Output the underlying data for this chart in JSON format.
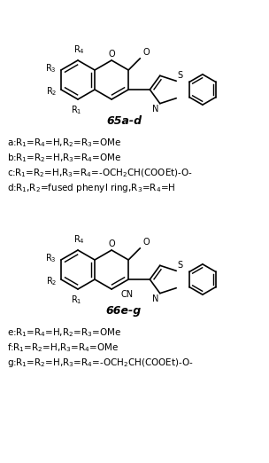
{
  "background_color": "#ffffff",
  "fig_width": 3.04,
  "fig_height": 5.22,
  "dpi": 100,
  "compound1_label": "65a-d",
  "compound2_label": "66e-g",
  "lines_65": [
    "a:R$_1$=R$_4$=H,R$_2$=R$_3$=OMe",
    "b:R$_1$=R$_2$=H,R$_3$=R$_4$=OMe",
    "c:R$_1$=R$_2$=H,R$_3$=R$_4$=-OCH$_2$CH(COOEt)-O-",
    "d:R$_1$,R$_2$=fused phenyl ring,R$_3$=R$_4$=H"
  ],
  "lines_66": [
    "e:R$_1$=R$_4$=H,R$_2$=R$_3$=OMe",
    "f:R$_1$=R$_2$=H,R$_3$=R$_4$=OMe",
    "g:R$_1$=R$_2$=H,R$_3$=R$_4$=-OCH$_2$CH(COOEt)-O-"
  ]
}
